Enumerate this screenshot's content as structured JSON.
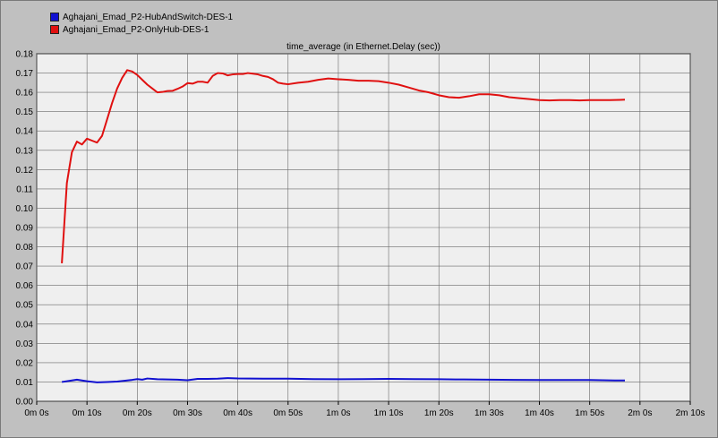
{
  "legend": [
    {
      "label": "Aghajani_Emad_P2-HubAndSwitch-DES-1",
      "color": "#1010d0"
    },
    {
      "label": "Aghajani_Emad_P2-OnlyHub-DES-1",
      "color": "#e01010"
    }
  ],
  "chart_data": {
    "type": "line",
    "title": "time_average (in Ethernet.Delay (sec))",
    "xlabel": "",
    "ylabel": "",
    "x_unit": "seconds",
    "xlim": [
      0,
      130
    ],
    "ylim": [
      0,
      0.18
    ],
    "x_ticks": [
      0,
      10,
      20,
      30,
      40,
      50,
      60,
      70,
      80,
      90,
      100,
      110,
      120,
      130
    ],
    "x_tick_labels": [
      "0m 0s",
      "0m 10s",
      "0m 20s",
      "0m 30s",
      "0m 40s",
      "0m 50s",
      "1m 0s",
      "1m 10s",
      "1m 20s",
      "1m 30s",
      "1m 40s",
      "1m 50s",
      "2m 0s",
      "2m 10s"
    ],
    "y_ticks": [
      0,
      0.01,
      0.02,
      0.03,
      0.04,
      0.05,
      0.06,
      0.07,
      0.08,
      0.09,
      0.1,
      0.11,
      0.12,
      0.13,
      0.14,
      0.15,
      0.16,
      0.17,
      0.18
    ],
    "y_tick_labels": [
      "0.00",
      "0.01",
      "0.02",
      "0.03",
      "0.04",
      "0.05",
      "0.06",
      "0.07",
      "0.08",
      "0.09",
      "0.10",
      "0.11",
      "0.12",
      "0.13",
      "0.14",
      "0.15",
      "0.16",
      "0.17",
      "0.18"
    ],
    "grid": true,
    "series": [
      {
        "name": "Aghajani_Emad_P2-HubAndSwitch-DES-1",
        "color": "#1010d0",
        "x": [
          5,
          6,
          8,
          10,
          12,
          14,
          16,
          18,
          19,
          20,
          21,
          22,
          24,
          26,
          28,
          30,
          32,
          34,
          36,
          38,
          40,
          45,
          50,
          55,
          60,
          65,
          70,
          75,
          80,
          85,
          90,
          95,
          100,
          105,
          110,
          115,
          117
        ],
        "y": [
          0.01,
          0.0104,
          0.0112,
          0.0104,
          0.0098,
          0.01,
          0.0102,
          0.0108,
          0.0111,
          0.0115,
          0.0112,
          0.0118,
          0.0114,
          0.0113,
          0.0112,
          0.0109,
          0.0116,
          0.0116,
          0.0117,
          0.012,
          0.0118,
          0.0117,
          0.0117,
          0.0115,
          0.0114,
          0.0115,
          0.0116,
          0.0115,
          0.0114,
          0.0113,
          0.0112,
          0.0111,
          0.011,
          0.011,
          0.011,
          0.0108,
          0.0108
        ]
      },
      {
        "name": "Aghajani_Emad_P2-OnlyHub-DES-1",
        "color": "#e01010",
        "x": [
          5,
          6,
          7,
          8,
          9,
          10,
          11,
          12,
          13,
          14,
          15,
          16,
          17,
          18,
          19,
          20,
          21,
          22,
          23,
          24,
          25,
          26,
          27,
          28,
          29,
          30,
          31,
          32,
          33,
          34,
          35,
          36,
          37,
          38,
          39,
          40,
          41,
          42,
          43,
          44,
          45,
          46,
          47,
          48,
          49,
          50,
          52,
          54,
          56,
          58,
          60,
          62,
          64,
          66,
          68,
          70,
          72,
          74,
          76,
          78,
          80,
          82,
          84,
          86,
          88,
          90,
          92,
          94,
          96,
          98,
          100,
          102,
          104,
          106,
          108,
          110,
          112,
          114,
          116,
          117
        ],
        "y": [
          0.0715,
          0.113,
          0.129,
          0.1345,
          0.133,
          0.136,
          0.135,
          0.134,
          0.1375,
          0.146,
          0.1545,
          0.162,
          0.1675,
          0.1715,
          0.1708,
          0.169,
          0.1665,
          0.164,
          0.162,
          0.16,
          0.1602,
          0.1607,
          0.1608,
          0.1618,
          0.163,
          0.1648,
          0.1645,
          0.1655,
          0.1655,
          0.165,
          0.1685,
          0.17,
          0.1698,
          0.1688,
          0.1693,
          0.1695,
          0.1695,
          0.17,
          0.1697,
          0.1693,
          0.1685,
          0.168,
          0.1668,
          0.165,
          0.1645,
          0.1642,
          0.165,
          0.1655,
          0.1665,
          0.1672,
          0.1668,
          0.1665,
          0.166,
          0.166,
          0.1658,
          0.165,
          0.164,
          0.1625,
          0.161,
          0.16,
          0.1585,
          0.1575,
          0.1572,
          0.158,
          0.159,
          0.159,
          0.1585,
          0.1575,
          0.157,
          0.1565,
          0.156,
          0.1558,
          0.156,
          0.156,
          0.1558,
          0.156,
          0.156,
          0.156,
          0.1561,
          0.1562
        ]
      }
    ]
  }
}
